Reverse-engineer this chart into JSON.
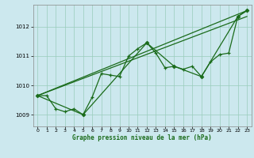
{
  "xlabel": "Graphe pression niveau de la mer (hPa)",
  "bg_color": "#cce8ee",
  "grid_color": "#99ccbb",
  "line_color": "#1a6b1a",
  "xlim": [
    -0.5,
    23.5
  ],
  "ylim": [
    1008.6,
    1012.75
  ],
  "yticks": [
    1009,
    1010,
    1011,
    1012
  ],
  "xticks": [
    0,
    1,
    2,
    3,
    4,
    5,
    6,
    7,
    8,
    9,
    10,
    11,
    12,
    13,
    14,
    15,
    16,
    17,
    18,
    19,
    20,
    21,
    22,
    23
  ],
  "series1": [
    [
      0,
      1009.65
    ],
    [
      1,
      1009.65
    ],
    [
      2,
      1009.2
    ],
    [
      3,
      1009.1
    ],
    [
      4,
      1009.2
    ],
    [
      5,
      1009.0
    ],
    [
      6,
      1009.6
    ],
    [
      7,
      1010.4
    ],
    [
      8,
      1010.35
    ],
    [
      9,
      1010.3
    ],
    [
      10,
      1011.0
    ],
    [
      11,
      1011.25
    ],
    [
      12,
      1011.45
    ],
    [
      13,
      1011.1
    ],
    [
      14,
      1010.6
    ],
    [
      15,
      1010.65
    ],
    [
      16,
      1010.55
    ],
    [
      17,
      1010.65
    ],
    [
      18,
      1010.3
    ],
    [
      19,
      1010.8
    ],
    [
      20,
      1011.05
    ],
    [
      21,
      1011.1
    ],
    [
      22,
      1012.35
    ],
    [
      23,
      1012.55
    ]
  ],
  "series2_x": [
    0,
    5,
    12,
    15,
    18,
    22,
    23
  ],
  "series2_y": [
    1009.65,
    1009.0,
    1011.45,
    1010.65,
    1010.3,
    1012.35,
    1012.55
  ],
  "line1_x": [
    0,
    23
  ],
  "line1_y": [
    1009.65,
    1012.55
  ],
  "line2_x": [
    0,
    23
  ],
  "line2_y": [
    1009.65,
    1012.35
  ]
}
